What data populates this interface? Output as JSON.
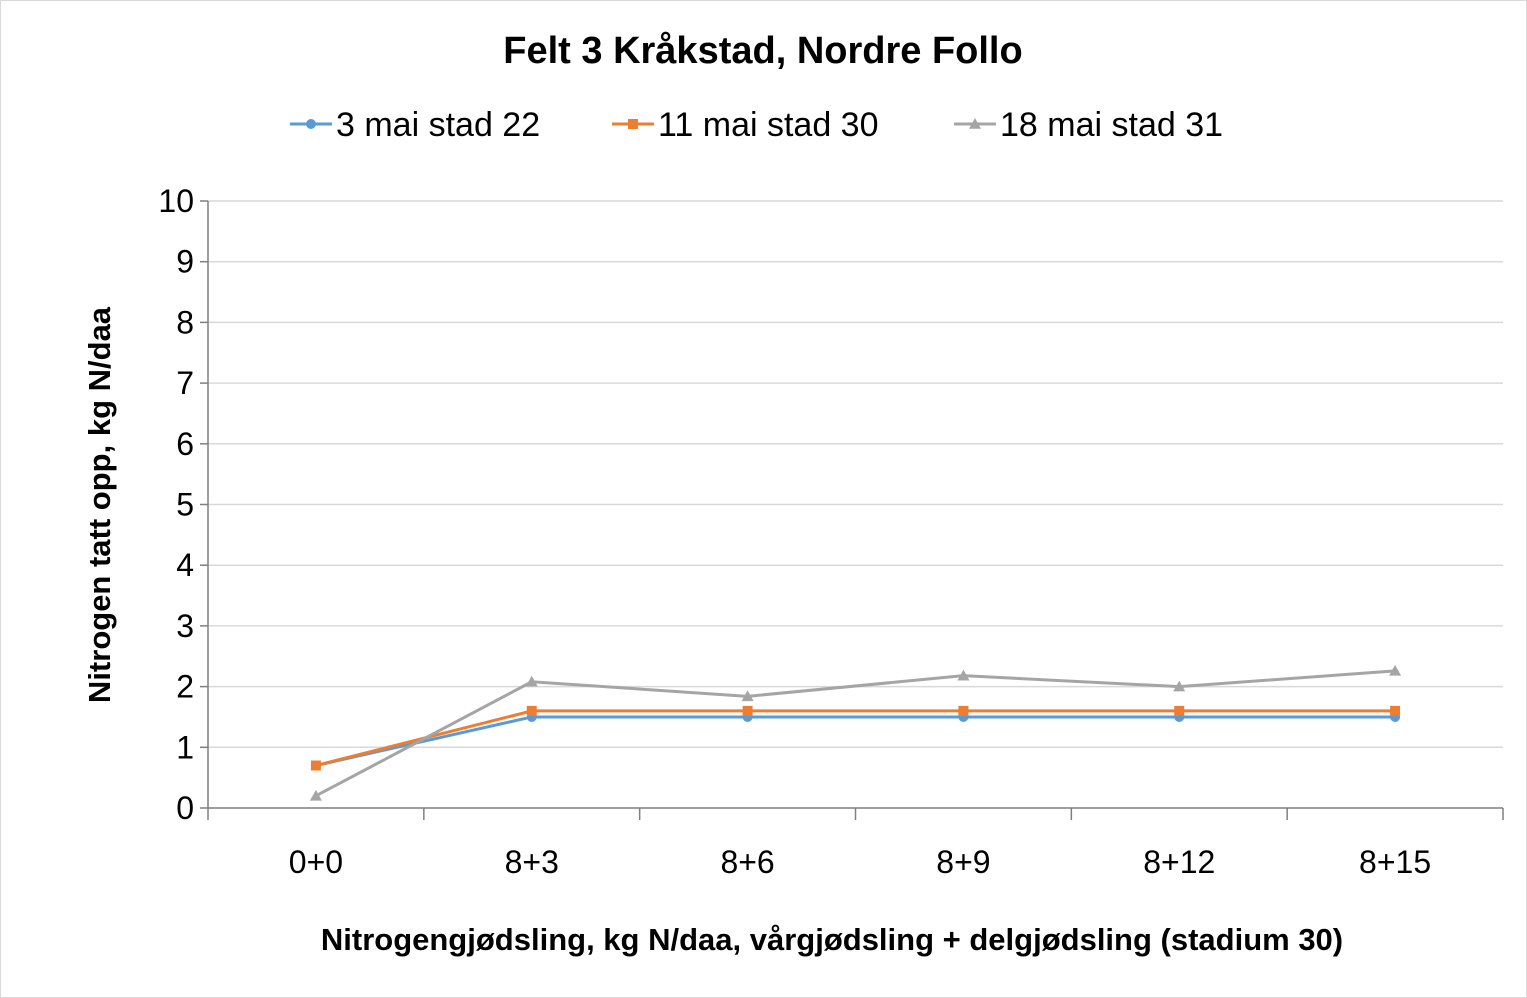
{
  "chart_data": {
    "type": "line",
    "title": "Felt 3 Kråkstad, Nordre Follo",
    "xlabel": "Nitrogengjødsling, kg N/daa, vårgjødsling + delgjødsling (stadium 30)",
    "ylabel": "Nitrogen tatt opp, kg N/daa",
    "categories": [
      "0+0",
      "8+3",
      "8+6",
      "8+9",
      "8+12",
      "8+15"
    ],
    "ylim": [
      0,
      10
    ],
    "yticks": [
      0,
      1,
      2,
      3,
      4,
      5,
      6,
      7,
      8,
      9,
      10
    ],
    "grid": true,
    "legend": "top",
    "series": [
      {
        "name": "3 mai stad 22",
        "color": "#5b9bd5",
        "marker": "circle",
        "values": [
          0.7,
          1.5,
          1.5,
          1.5,
          1.5,
          1.5
        ]
      },
      {
        "name": "11 mai stad 30",
        "color": "#ed7d31",
        "marker": "square",
        "values": [
          0.7,
          1.6,
          1.6,
          1.6,
          1.6,
          1.6
        ]
      },
      {
        "name": "18 mai stad 31",
        "color": "#a5a5a5",
        "marker": "triangle",
        "values": [
          0.2,
          2.08,
          1.84,
          2.18,
          2.0,
          2.26
        ]
      }
    ]
  }
}
